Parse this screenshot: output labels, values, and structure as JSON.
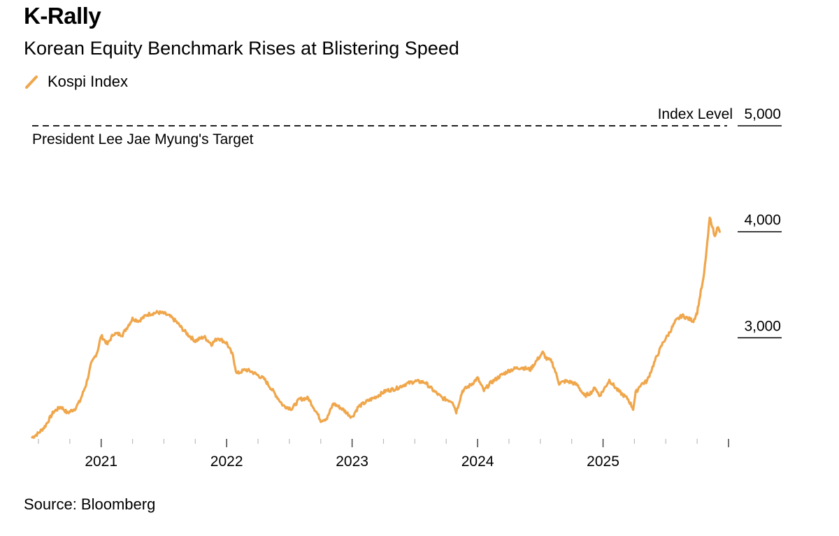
{
  "header": {
    "title": "K-Rally",
    "subtitle": "Korean Equity Benchmark Rises at Blistering Speed"
  },
  "legend": {
    "label": "Kospi Index",
    "color": "#F0A64B"
  },
  "footer": {
    "source": "Source: Bloomberg"
  },
  "chart_data": {
    "type": "line",
    "title": "K-Rally",
    "subtitle": "Korean Equity Benchmark Rises at Blistering Speed",
    "ylabel": "Index Level",
    "xlabel": "",
    "ylim": [
      2000,
      5000
    ],
    "xlim": [
      2020.45,
      2026.0
    ],
    "y_ticks": [
      3000,
      4000,
      5000
    ],
    "y_tick_labels": [
      "3,000",
      "4,000",
      "5,000"
    ],
    "x_ticks": [
      2021,
      2022,
      2023,
      2024,
      2025
    ],
    "x_tick_labels": [
      "2021",
      "2022",
      "2023",
      "2024",
      "2025"
    ],
    "reference_line": {
      "value": 5000,
      "label": "President Lee Jae Myung's Target",
      "style": "dashed"
    },
    "series": [
      {
        "name": "Kospi Index",
        "color": "#F0A64B",
        "x": [
          2020.45,
          2020.5,
          2020.55,
          2020.62,
          2020.68,
          2020.73,
          2020.79,
          2020.83,
          2020.88,
          2020.92,
          2020.97,
          2021.0,
          2021.05,
          2021.1,
          2021.17,
          2021.25,
          2021.3,
          2021.37,
          2021.45,
          2021.5,
          2021.55,
          2021.6,
          2021.65,
          2021.7,
          2021.75,
          2021.82,
          2021.88,
          2021.93,
          2022.0,
          2022.05,
          2022.08,
          2022.15,
          2022.2,
          2022.3,
          2022.38,
          2022.45,
          2022.52,
          2022.58,
          2022.65,
          2022.72,
          2022.75,
          2022.8,
          2022.85,
          2022.92,
          2023.0,
          2023.05,
          2023.12,
          2023.2,
          2023.27,
          2023.35,
          2023.42,
          2023.5,
          2023.58,
          2023.65,
          2023.72,
          2023.8,
          2023.83,
          2023.88,
          2023.95,
          2024.0,
          2024.05,
          2024.1,
          2024.18,
          2024.25,
          2024.3,
          2024.35,
          2024.42,
          2024.48,
          2024.52,
          2024.55,
          2024.59,
          2024.62,
          2024.65,
          2024.7,
          2024.75,
          2024.8,
          2024.85,
          2024.9,
          2024.94,
          2024.97,
          2025.0,
          2025.05,
          2025.12,
          2025.2,
          2025.24,
          2025.26,
          2025.3,
          2025.35,
          2025.42,
          2025.48,
          2025.52,
          2025.58,
          2025.63,
          2025.68,
          2025.72,
          2025.75,
          2025.78,
          2025.8,
          2025.83,
          2025.85,
          2025.87,
          2025.89,
          2025.91,
          2025.93
        ],
        "values": [
          2060,
          2100,
          2160,
          2300,
          2350,
          2290,
          2330,
          2400,
          2560,
          2750,
          2870,
          3020,
          2940,
          3040,
          3030,
          3180,
          3160,
          3220,
          3240,
          3230,
          3200,
          3150,
          3080,
          3020,
          2970,
          3010,
          2940,
          3000,
          2950,
          2830,
          2660,
          2700,
          2680,
          2610,
          2480,
          2360,
          2330,
          2420,
          2430,
          2290,
          2220,
          2240,
          2380,
          2330,
          2250,
          2350,
          2400,
          2450,
          2500,
          2520,
          2560,
          2590,
          2580,
          2500,
          2430,
          2400,
          2300,
          2500,
          2560,
          2620,
          2500,
          2570,
          2640,
          2690,
          2710,
          2720,
          2700,
          2800,
          2860,
          2800,
          2780,
          2680,
          2570,
          2590,
          2580,
          2550,
          2450,
          2480,
          2530,
          2450,
          2500,
          2600,
          2500,
          2420,
          2330,
          2480,
          2560,
          2590,
          2800,
          2960,
          3030,
          3160,
          3210,
          3180,
          3160,
          3240,
          3440,
          3550,
          3880,
          4130,
          4060,
          3950,
          4050,
          4000
        ]
      }
    ]
  }
}
